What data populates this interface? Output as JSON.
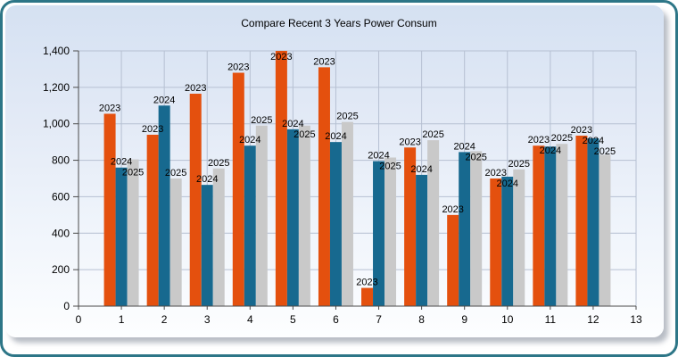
{
  "window": {
    "frame_border_color": "#2d7687",
    "panel_gradient_top": "#d5e1f2",
    "panel_gradient_bottom": "#fdfeff"
  },
  "chart_data": {
    "type": "bar",
    "title": "Compare Recent 3 Years Power Consum",
    "categories": [
      1,
      2,
      3,
      4,
      5,
      6,
      7,
      8,
      9,
      10,
      11,
      12
    ],
    "series": [
      {
        "name": "2023",
        "color": "#e4500e",
        "values": [
          1055,
          940,
          1165,
          1280,
          1400,
          1310,
          100,
          870,
          500,
          700,
          880,
          935
        ]
      },
      {
        "name": "2024",
        "color": "#17698f",
        "values": [
          760,
          1100,
          665,
          880,
          970,
          900,
          795,
          720,
          845,
          710,
          875,
          920
        ]
      },
      {
        "name": "2025",
        "color": "#c9c9c9",
        "values": [
          805,
          700,
          755,
          990,
          990,
          1010,
          815,
          910,
          850,
          750,
          890,
          830
        ]
      }
    ],
    "xlabel": "",
    "ylabel": "",
    "xlim": [
      0,
      13
    ],
    "ylim": [
      0,
      1400
    ],
    "xticks": [
      "0",
      "1",
      "2",
      "3",
      "4",
      "5",
      "6",
      "7",
      "8",
      "9",
      "10",
      "11",
      "12",
      "13"
    ],
    "yticks": [
      "0",
      "200",
      "400",
      "600",
      "800",
      "1,000",
      "1,200",
      "1,400"
    ],
    "grid": true,
    "legend": "none (each bar labeled with its year above the bar)",
    "grid_color": "#b6c0d2",
    "axis_color": "#4a4a4a",
    "text_color": "#000000",
    "bar_label_font_px": 11,
    "tick_label_font_px": 12
  }
}
